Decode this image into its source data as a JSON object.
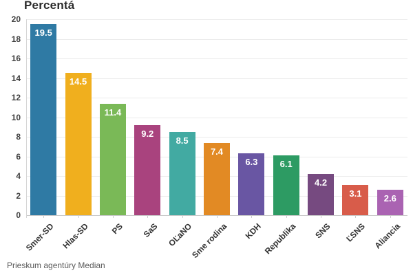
{
  "title": "Percentá",
  "source_note": "Prieskum agentúry Median",
  "chart_data": {
    "type": "bar",
    "title": "Percentá",
    "categories": [
      "Smer-SD",
      "Hlas-SD",
      "PS",
      "SaS",
      "OĽaNO",
      "Sme rodina",
      "KDH",
      "Republika",
      "SNS",
      "ĽSNS",
      "Aliancia"
    ],
    "values": [
      19.5,
      14.5,
      11.4,
      9.2,
      8.5,
      7.4,
      6.3,
      6.1,
      4.2,
      3.1,
      2.6
    ],
    "bar_colors": [
      "#2f7aa4",
      "#f0af1e",
      "#7ab957",
      "#a9437e",
      "#42aaa2",
      "#e28a24",
      "#6956a3",
      "#2d9b63",
      "#764a80",
      "#d85c4a",
      "#aa63b2"
    ],
    "value_label_color": "#ffffff",
    "xlabel": "",
    "ylabel": "",
    "ylim": [
      0,
      20
    ],
    "ytick_step": 2,
    "yticks": [
      "0",
      "2",
      "4",
      "6",
      "8",
      "10",
      "12",
      "14",
      "16",
      "18",
      "20"
    ],
    "grid": true,
    "legend": "none",
    "annotation": "Prieskum agentúry Median"
  },
  "style_colors": {
    "grid": "#ebebeb",
    "baseline": "#c9c9c9",
    "axis": "#d6d6d6",
    "tick": "#cccccc"
  }
}
